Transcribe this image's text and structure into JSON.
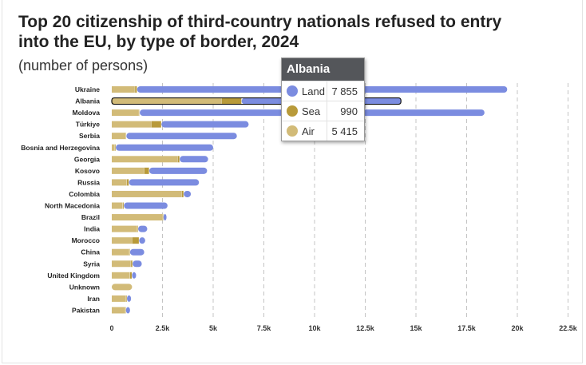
{
  "title": "Top 20 citizenship of third-country nationals refused to entry into the EU, by type of border, 2024",
  "subtitle": "(number of persons)",
  "colors": {
    "land": "#7b8ce0",
    "sea": "#b89a3a",
    "air": "#d2bb78",
    "gridline": "#c4c4c4"
  },
  "chart_data": {
    "type": "bar",
    "orientation": "horizontal",
    "stacked": true,
    "categories": [
      "Ukraine",
      "Albania",
      "Moldova",
      "Türkiye",
      "Serbia",
      "Bosnia and Herzegovina",
      "Georgia",
      "Kosovo",
      "Russia",
      "Colombia",
      "North Macedonia",
      "Brazil",
      "India",
      "Morocco",
      "China",
      "Syria",
      "United Kingdom",
      "Unknown",
      "Iran",
      "Pakistan"
    ],
    "series": [
      {
        "name": "Air",
        "values": [
          1150,
          5415,
          1350,
          1950,
          700,
          150,
          3250,
          1600,
          750,
          3450,
          550,
          2500,
          1250,
          1000,
          850,
          950,
          900,
          1000,
          700,
          650
        ]
      },
      {
        "name": "Sea",
        "values": [
          100,
          990,
          30,
          500,
          20,
          50,
          100,
          250,
          100,
          100,
          50,
          50,
          50,
          350,
          50,
          80,
          100,
          0,
          50,
          50
        ]
      },
      {
        "name": "Land",
        "values": [
          18250,
          7855,
          17000,
          4300,
          5450,
          4800,
          1400,
          2850,
          3450,
          350,
          2150,
          150,
          450,
          300,
          700,
          450,
          200,
          0,
          200,
          200
        ]
      }
    ],
    "xlim": [
      0,
      22500
    ],
    "xticks": [
      0,
      2500,
      5000,
      7500,
      10000,
      12500,
      15000,
      17500,
      20000,
      22500
    ],
    "xtick_labels": [
      "0",
      "2.5k",
      "5k",
      "7.5k",
      "10k",
      "12.5k",
      "15k",
      "17.5k",
      "20k",
      "22.5k"
    ],
    "highlighted": "Albania",
    "grid": "vertical dashed"
  },
  "tooltip": {
    "title": "Albania",
    "rows": [
      {
        "label": "Land",
        "value": "7 855",
        "color": "#7b8ce0"
      },
      {
        "label": "Sea",
        "value": "990",
        "color": "#b89a3a"
      },
      {
        "label": "Air",
        "value": "5 415",
        "color": "#d2bb78"
      }
    ]
  }
}
